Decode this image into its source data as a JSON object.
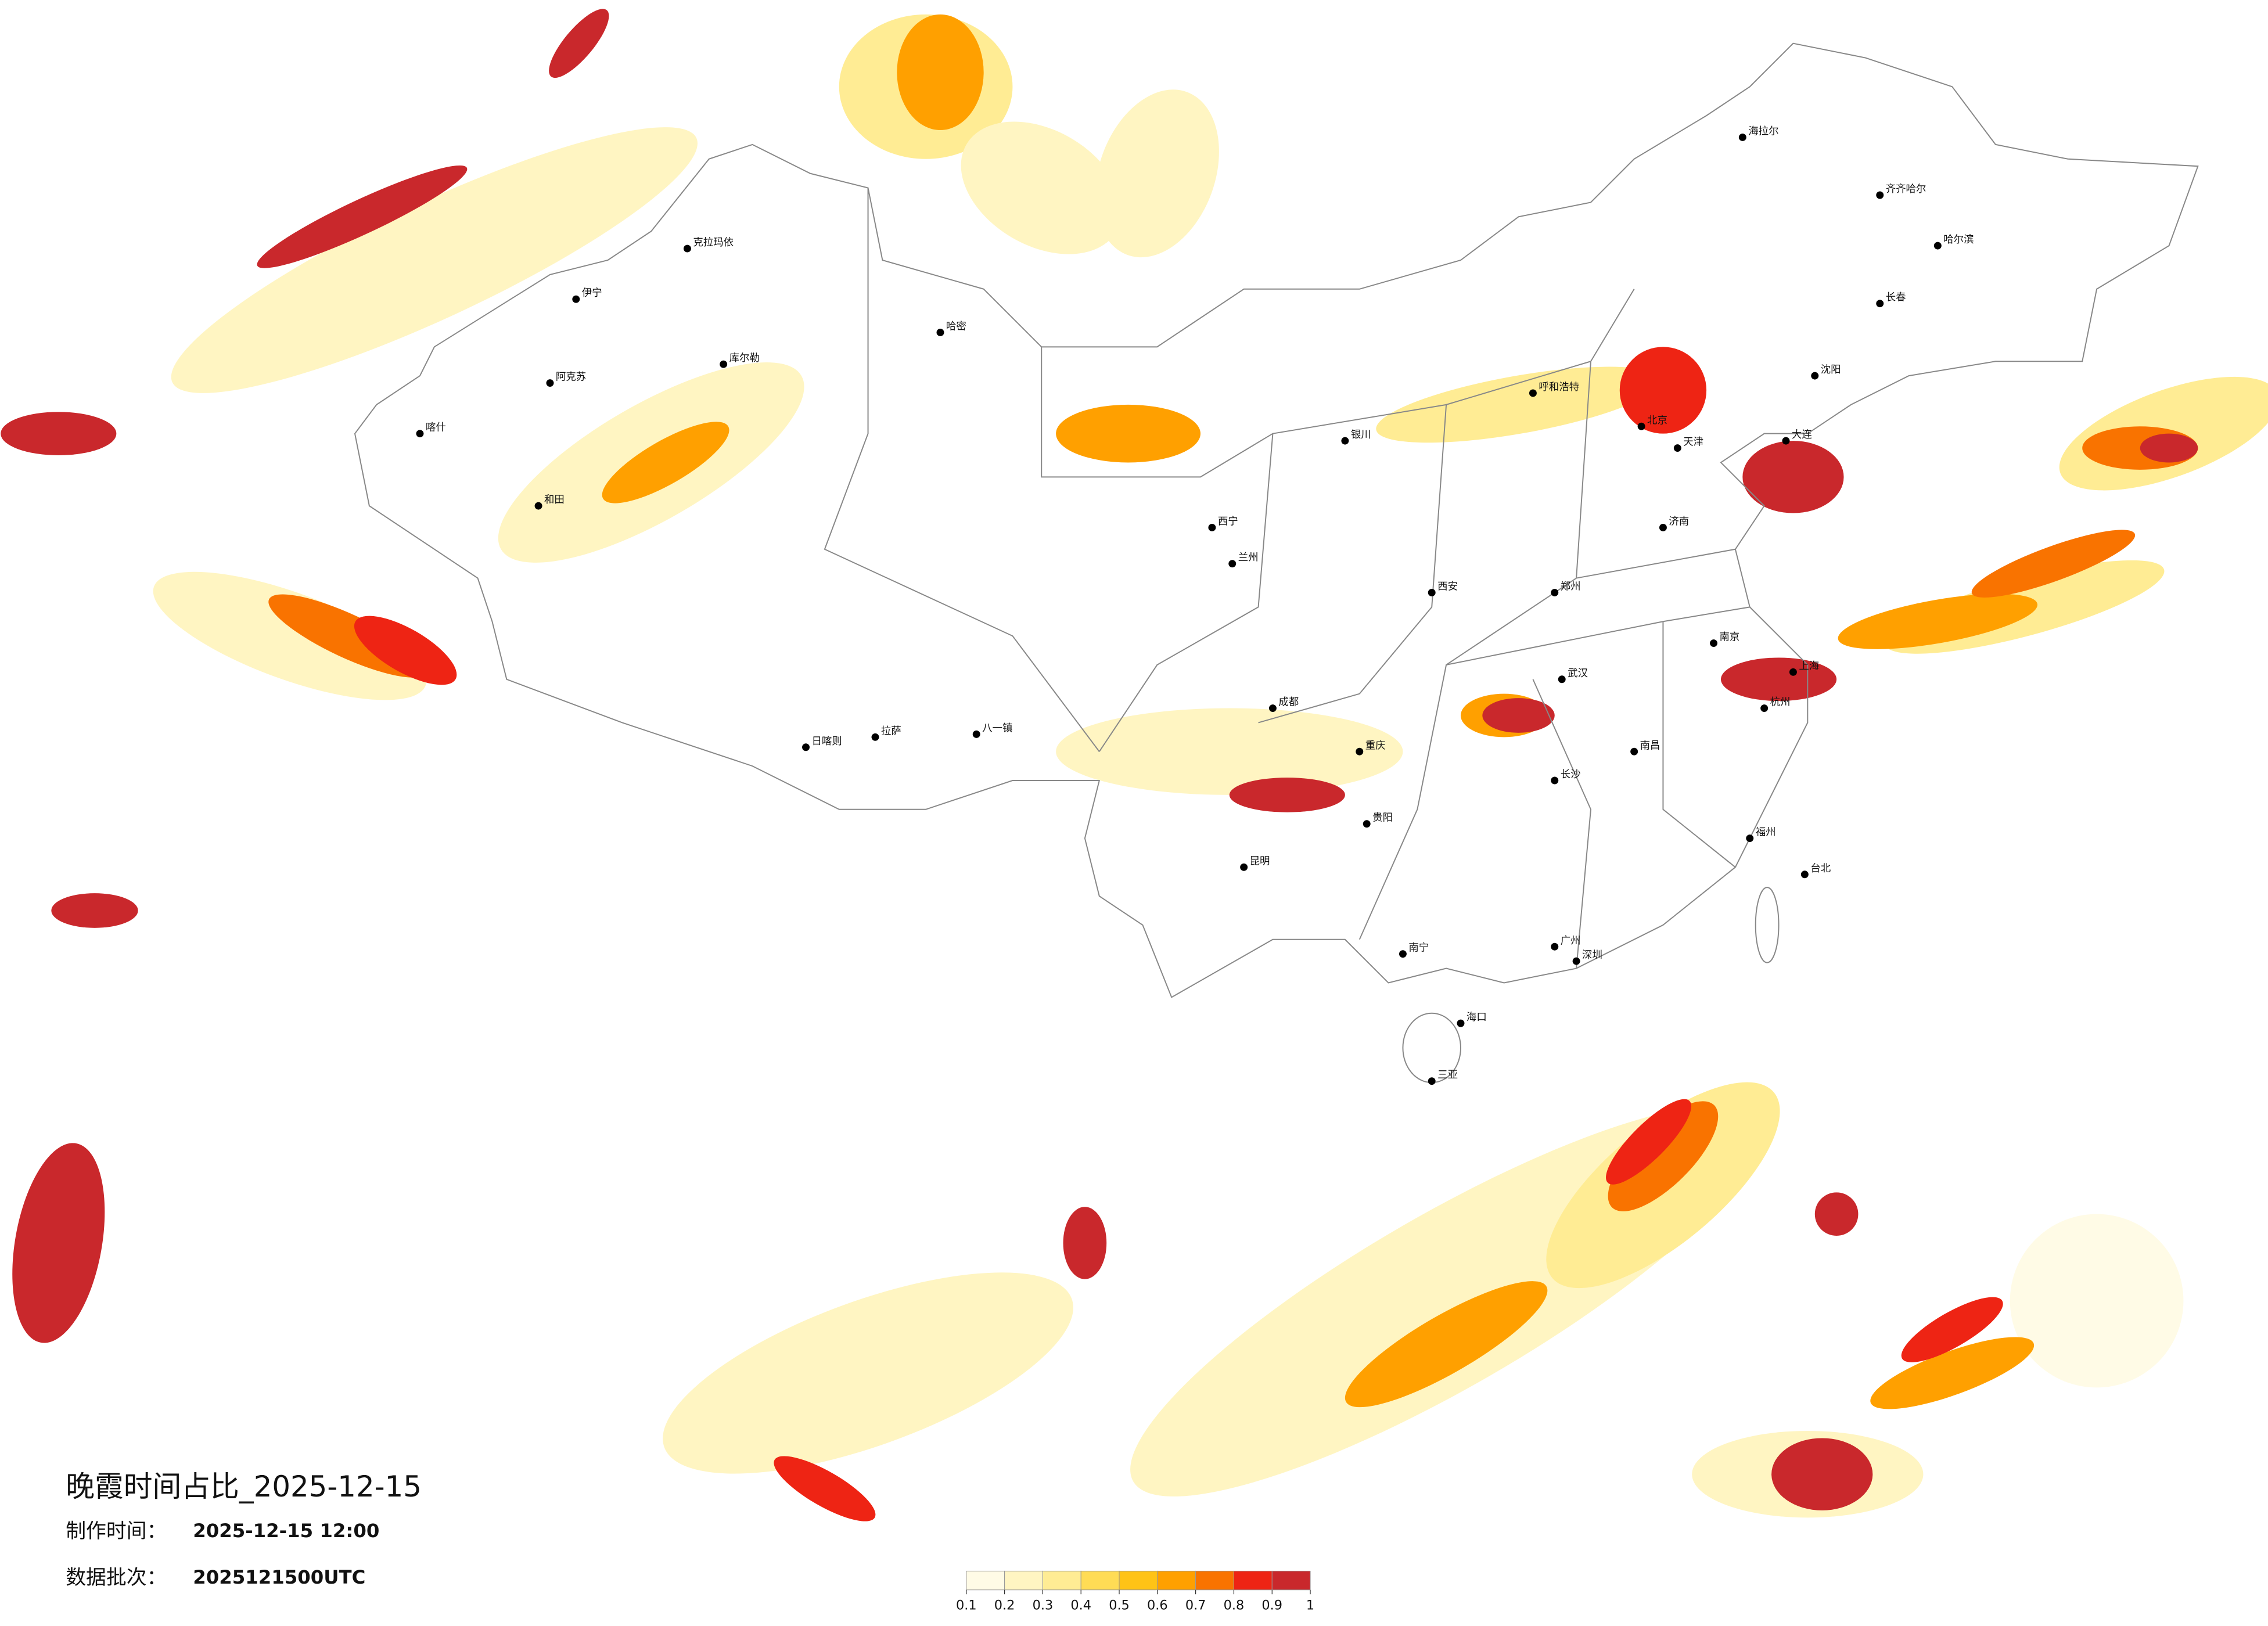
{
  "title": "晚霞时间占比_2025-12-15",
  "meta": [
    {
      "label": "制作时间：",
      "value": "2025-12-15 12:00"
    },
    {
      "label": "数据批次：",
      "value": "2025121500UTC"
    }
  ],
  "legend": {
    "colors": [
      "#fffbe6",
      "#fff5c2",
      "#ffec94",
      "#ffdc55",
      "#ffc316",
      "#ffa000",
      "#f97300",
      "#ee2414",
      "#c9282c"
    ],
    "ticks": [
      0.1,
      0.2,
      0.3,
      0.4,
      0.5,
      0.6,
      0.7,
      0.8,
      0.9,
      1
    ]
  },
  "cities": [
    "克拉玛依",
    "伊宁",
    "阿克苏",
    "库尔勒",
    "喀什",
    "和田",
    "哈密",
    "拉萨",
    "日喀则",
    "八一镇",
    "西宁",
    "兰州",
    "银川",
    "呼和浩特",
    "北京",
    "天津",
    "哈尔滨",
    "长春",
    "沈阳",
    "大连",
    "济南",
    "郑州",
    "西安",
    "成都",
    "重庆",
    "武汉",
    "南京",
    "上海",
    "杭州",
    "长沙",
    "南昌",
    "福州",
    "台北",
    "广州",
    "深圳",
    "南宁",
    "昆明",
    "贵阳",
    "海口",
    "三亚",
    "海拉尔",
    "齐齐哈尔"
  ]
}
